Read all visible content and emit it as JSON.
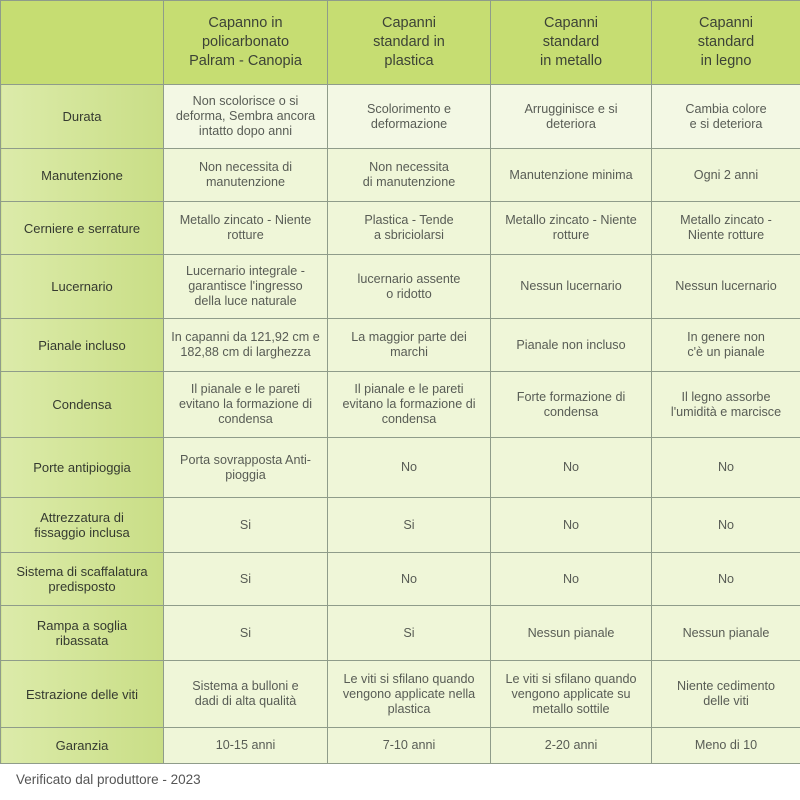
{
  "table": {
    "headers": [
      "",
      "Capanno in\npolicarbonato\nPalram - Canopia",
      "Capanni\nstandard in\nplastica",
      "Capanni\nstandard\nin metallo",
      "Capanni\nstandard\nin legno"
    ],
    "rows": [
      {
        "label": "Durata",
        "cells": [
          "Non scolorisce o si\ndeforma, Sembra ancora\nintatto dopo anni",
          "Scolorimento e\ndeformazione",
          "Arrugginisce e si\ndeteriora",
          "Cambia colore\ne si deteriora"
        ]
      },
      {
        "label": "Manutenzione",
        "cells": [
          "Non necessita di\nmanutenzione",
          "Non necessita\ndi manutenzione",
          "Manutenzione minima",
          "Ogni 2 anni"
        ]
      },
      {
        "label": "Cerniere e serrature",
        "cells": [
          "Metallo zincato - Niente\nrotture",
          "Plastica - Tende\na sbriciolarsi",
          "Metallo zincato - Niente\nrotture",
          "Metallo zincato -\nNiente rotture"
        ]
      },
      {
        "label": "Lucernario",
        "cells": [
          "Lucernario integrale -\ngarantisce l'ingresso\ndella luce naturale",
          "lucernario assente\no ridotto",
          "Nessun lucernario",
          "Nessun lucernario"
        ]
      },
      {
        "label": "Pianale incluso",
        "cells": [
          "In capanni da 121,92 cm e\n182,88 cm di larghezza",
          "La maggior parte dei\nmarchi",
          "Pianale non incluso",
          "In genere non\nc'è un pianale"
        ]
      },
      {
        "label": "Condensa",
        "cells": [
          "Il pianale e le pareti\nevitano la formazione di\ncondensa",
          "Il pianale e le pareti\nevitano la formazione di\ncondensa",
          "Forte formazione di\ncondensa",
          "Il legno assorbe\nl'umidità e marcisce"
        ]
      },
      {
        "label": "Porte antipioggia",
        "cells": [
          "Porta sovrapposta Anti-\npioggia",
          "No",
          "No",
          "No"
        ]
      },
      {
        "label": "Attrezzatura di\nfissaggio inclusa",
        "cells": [
          "Si",
          "Si",
          "No",
          "No"
        ]
      },
      {
        "label": "Sistema di scaffalatura\npredisposto",
        "cells": [
          "Si",
          "No",
          "No",
          "No"
        ]
      },
      {
        "label": "Rampa a soglia\nribassata",
        "cells": [
          "Si",
          "Si",
          "Nessun pianale",
          "Nessun pianale"
        ]
      },
      {
        "label": "Estrazione delle viti",
        "cells": [
          "Sistema a bulloni e\ndadi di alta qualità",
          "Le viti si sfilano quando\nvengono applicate nella\nplastica",
          "Le viti si sfilano quando\nvengono applicate su\nmetallo sottile",
          "Niente cedimento\ndelle viti"
        ]
      },
      {
        "label": "Garanzia",
        "cells": [
          "10-15 anni",
          "7-10 anni",
          "2-20 anni",
          "Meno di 10"
        ]
      }
    ]
  },
  "footer": "Verificato dal produttore - 2023",
  "colors": {
    "header": "#c6dd72",
    "label_column": "#d3e69a",
    "cell": "#eff6d8",
    "border": "#8f9c8a"
  }
}
